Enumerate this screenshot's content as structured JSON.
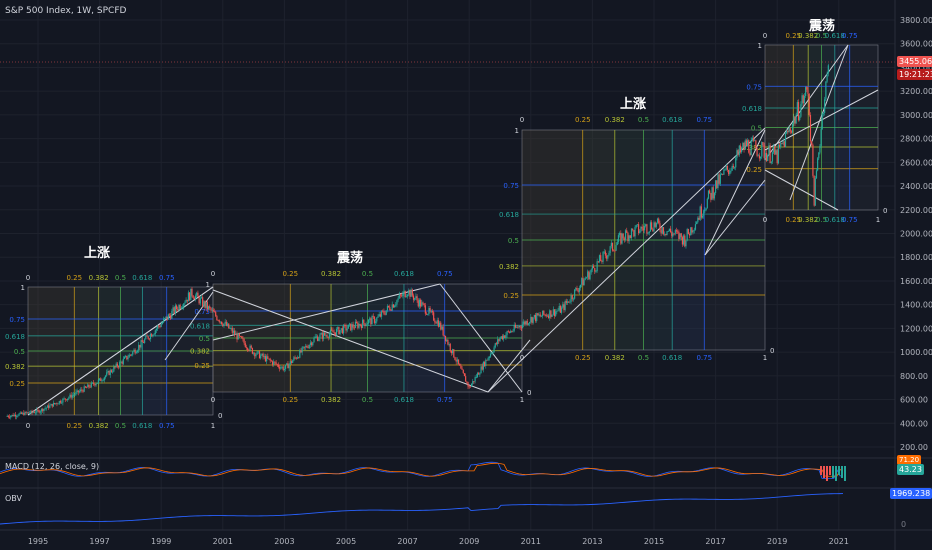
{
  "header": {
    "symbol_title": "S&P 500 Index, 1W, SPCFD"
  },
  "price_axis": {
    "ticks": [
      "3800.00",
      "3600.00",
      "3400.00",
      "3200.00",
      "3000.00",
      "2800.00",
      "2600.00",
      "2400.00",
      "2200.00",
      "2000.00",
      "1800.00",
      "1600.00",
      "1400.00",
      "1200.00",
      "1000.00",
      "800.00",
      "600.00",
      "400.00",
      "200.00"
    ],
    "current_price": "3455.06",
    "countdown": "19:21:23"
  },
  "time_axis": {
    "ticks": [
      "1995",
      "1997",
      "1999",
      "2001",
      "2003",
      "2005",
      "2007",
      "2009",
      "2011",
      "2013",
      "2015",
      "2017",
      "2019",
      "2021"
    ]
  },
  "annotations": {
    "rise_1": "上涨",
    "range_1": "震荡",
    "rise_2": "上涨",
    "range_2": "震荡"
  },
  "fib_levels": [
    "0",
    "0.25",
    "0.382",
    "0.5",
    "0.618",
    "0.75",
    "1"
  ],
  "fib_colors": {
    "0.25": "#d4a017",
    "0.382": "#b5c234",
    "0.5": "#4caf50",
    "0.618": "#26a69a",
    "0.75": "#2962ff"
  },
  "indicators": {
    "macd": {
      "label": "MACD (12, 26, close, 9)",
      "value_top": "71.20",
      "value_bottom": "43.23"
    },
    "obv": {
      "label": "OBV",
      "value": "1969.238",
      "zero_label": "0"
    }
  },
  "colors": {
    "bg": "#131722",
    "up": "#26a69a",
    "down": "#ef5350",
    "macd": "#2962ff",
    "signal": "#ff6d00",
    "obv": "#2962ff",
    "fan": "#d1d4dc"
  },
  "chart_data": {
    "type": "line",
    "title": "S&P 500 Index, 1W, SPCFD",
    "xlabel": "",
    "ylabel": "",
    "x": [
      1994,
      1995,
      1996,
      1997,
      1998,
      1999,
      2000,
      2001,
      2002,
      2003,
      2004,
      2005,
      2006,
      2007,
      2008,
      2009,
      2010,
      2011,
      2012,
      2013,
      2014,
      2015,
      2016,
      2017,
      2018,
      2019,
      2020,
      2020.2,
      2020.5,
      2020.7
    ],
    "y": [
      460,
      500,
      620,
      760,
      980,
      1240,
      1500,
      1250,
      1000,
      860,
      1120,
      1200,
      1280,
      1520,
      1250,
      700,
      1120,
      1280,
      1360,
      1700,
      1980,
      2080,
      1950,
      2400,
      2750,
      2650,
      3220,
      2300,
      3100,
      3455
    ],
    "ylim": [
      0,
      3900
    ],
    "xlim": [
      1993.5,
      2021.5
    ],
    "grid": true,
    "last_price": 3455.06
  }
}
